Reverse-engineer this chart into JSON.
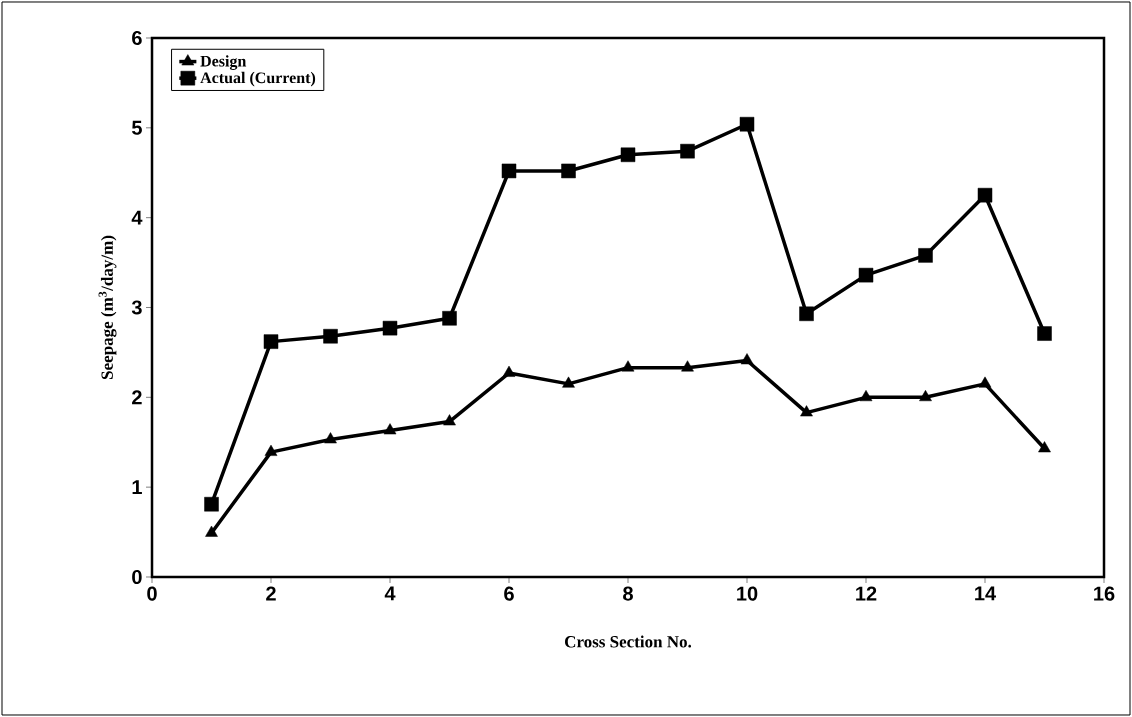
{
  "chart_data": {
    "type": "line",
    "xlabel": "Cross Section No.",
    "ylabel": "Seepage (m$^{3}$/day/m)",
    "x": [
      1,
      2,
      3,
      4,
      5,
      6,
      7,
      8,
      9,
      10,
      11,
      12,
      13,
      14,
      15
    ],
    "series": [
      {
        "name": "Design",
        "color": "#000000",
        "marker": "triangle",
        "values": [
          0.49,
          1.39,
          1.53,
          1.63,
          1.73,
          2.27,
          2.15,
          2.33,
          2.33,
          2.41,
          1.83,
          2.0,
          2.0,
          2.15,
          1.43
        ]
      },
      {
        "name": "Actual (Current)",
        "color": "#000000",
        "marker": "square",
        "values": [
          0.81,
          2.62,
          2.68,
          2.77,
          2.88,
          4.52,
          4.52,
          4.7,
          4.74,
          5.04,
          2.93,
          3.36,
          3.58,
          4.25,
          2.71
        ]
      }
    ],
    "xlim": [
      0,
      16
    ],
    "xticks": [
      0,
      2,
      4,
      6,
      8,
      10,
      12,
      14,
      16
    ],
    "ylim": [
      0,
      6
    ],
    "yticks": [
      0,
      1,
      2,
      3,
      4,
      5,
      6
    ],
    "grid": false,
    "legend": "top left",
    "line_style": "solid"
  }
}
